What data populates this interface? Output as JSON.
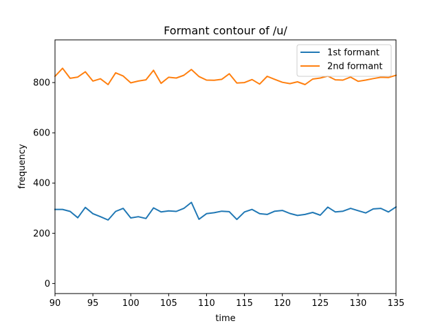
{
  "chart_data": {
    "type": "line",
    "title": "Formant contour of /u/",
    "xlabel": "time",
    "ylabel": "frequency",
    "xlim": [
      90,
      135
    ],
    "ylim": [
      -40,
      970
    ],
    "xticks": [
      90,
      95,
      100,
      105,
      110,
      115,
      120,
      125,
      130,
      135
    ],
    "yticks": [
      0,
      200,
      400,
      600,
      800
    ],
    "grid": false,
    "legend_position": "top-right",
    "x": [
      90,
      91,
      92,
      93,
      94,
      95,
      96,
      97,
      98,
      99,
      100,
      101,
      102,
      103,
      104,
      105,
      106,
      107,
      108,
      109,
      110,
      111,
      112,
      113,
      114,
      115,
      116,
      117,
      118,
      119,
      120,
      121,
      122,
      123,
      124,
      125,
      126,
      127,
      128,
      129,
      130,
      131,
      132,
      133,
      134,
      135
    ],
    "series": [
      {
        "name": "1st formant",
        "color": "#1f77b4",
        "values": [
          295,
          295,
          287,
          262,
          303,
          278,
          266,
          253,
          287,
          299,
          261,
          266,
          259,
          301,
          285,
          289,
          287,
          299,
          323,
          256,
          278,
          282,
          288,
          286,
          255,
          285,
          295,
          278,
          275,
          288,
          291,
          279,
          271,
          275,
          283,
          272,
          304,
          285,
          288,
          299,
          290,
          281,
          297,
          299,
          285,
          305
        ]
      },
      {
        "name": "2nd formant",
        "color": "#ff7f0e",
        "values": [
          825,
          857,
          817,
          822,
          843,
          806,
          815,
          792,
          839,
          826,
          799,
          806,
          811,
          849,
          797,
          821,
          818,
          829,
          852,
          824,
          810,
          809,
          813,
          835,
          798,
          800,
          812,
          794,
          825,
          813,
          801,
          796,
          803,
          792,
          814,
          818,
          826,
          811,
          810,
          822,
          805,
          810,
          816,
          821,
          820,
          829
        ]
      }
    ]
  }
}
